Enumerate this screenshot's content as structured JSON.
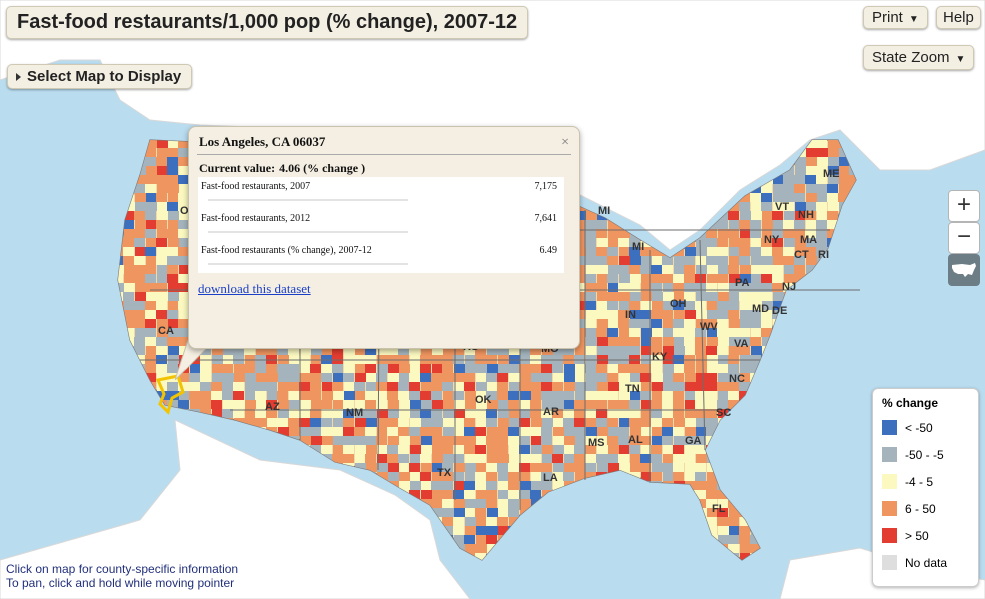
{
  "title": "Fast-food restaurants/1,000 pop (% change), 2007-12",
  "controls": {
    "select_map_label": "Select Map to Display",
    "print_label": "Print",
    "help_label": "Help",
    "state_zoom_label": "State Zoom",
    "zoom_in": "+",
    "zoom_out": "−"
  },
  "popup": {
    "title": "Los Angeles, CA 06037",
    "close": "×",
    "current_label": "Current value:",
    "current_value": "4.06 (% change )",
    "rows": [
      {
        "label": "Fast-food restaurants, 2007",
        "value": "7,175"
      },
      {
        "label": "Fast-food restaurants, 2012",
        "value": "7,641"
      },
      {
        "label": "Fast-food restaurants (% change), 2007-12",
        "value": "6.49"
      }
    ],
    "download_link": "download this dataset"
  },
  "legend": {
    "title": "% change",
    "items": [
      {
        "label": "< -50",
        "color": "#3c6fbe"
      },
      {
        "label": "-50 - -5",
        "color": "#a4b3bc"
      },
      {
        "label": "-4 - 5",
        "color": "#fbf8c0"
      },
      {
        "label": "6 - 50",
        "color": "#ef9560"
      },
      {
        "label": "> 50",
        "color": "#e23d30"
      },
      {
        "label": "No data",
        "color": "#dedede"
      }
    ]
  },
  "state_labels": [
    "ME",
    "VT",
    "NH",
    "MA",
    "NY",
    "CT",
    "RI",
    "PA",
    "NJ",
    "MI",
    "OH",
    "IN",
    "MD",
    "DE",
    "WV",
    "VA",
    "KY",
    "NC",
    "TN",
    "SC",
    "GA",
    "AL",
    "MS",
    "AR",
    "LA",
    "TX",
    "OK",
    "NM",
    "AZ",
    "CA",
    "OR",
    "FL",
    "MO",
    "KS",
    "MI"
  ],
  "hint": {
    "line1": "Click on map for county-specific information",
    "line2": "To pan, click and hold while moving pointer"
  },
  "colors": {
    "water": "#b9dcef",
    "land_other": "#ffffff",
    "accent_outline": "#f2c400"
  }
}
